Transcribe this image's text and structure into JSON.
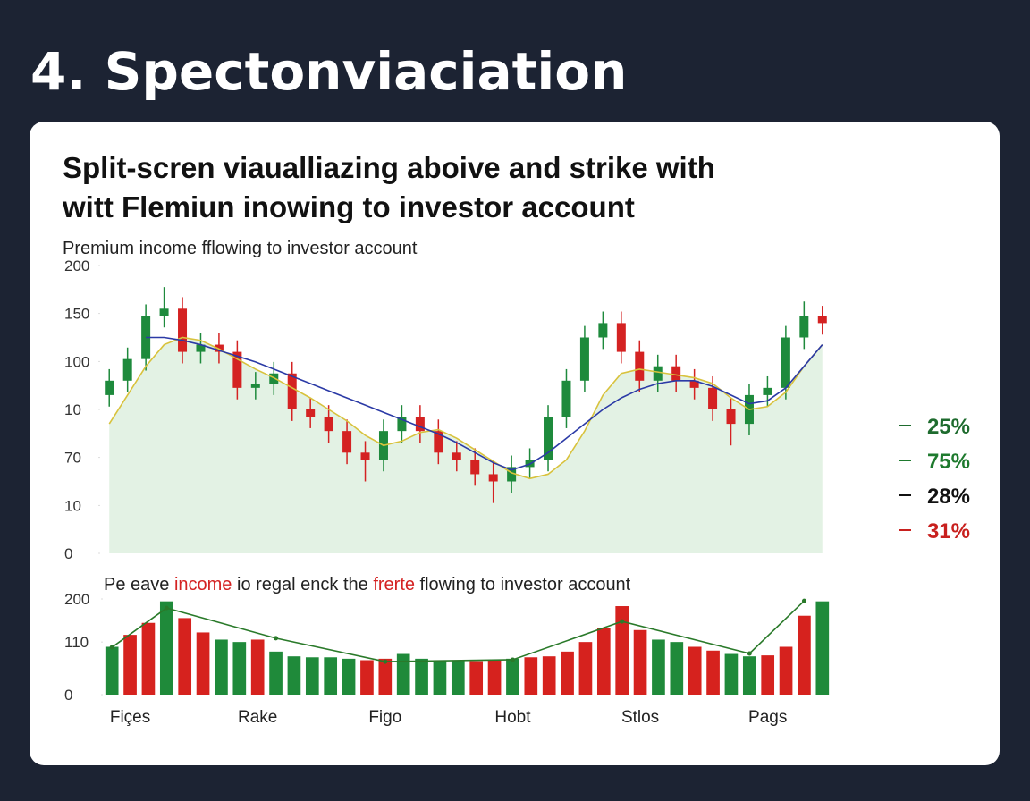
{
  "title": "4. Spectonviaciation",
  "heading": [
    "Split-scren viaualliazing aboive and strike with",
    "witt Flemiun inowing to investor account"
  ],
  "chart_data": [
    {
      "type": "candlestick",
      "title": "Premium income fflowing to investor account",
      "open": [
        110,
        120,
        135,
        165,
        170,
        140,
        145,
        140,
        115,
        118,
        125,
        100,
        95,
        85,
        70,
        65,
        85,
        95,
        85,
        70,
        65,
        55,
        50,
        60,
        65,
        95,
        120,
        150,
        160,
        140,
        120,
        130,
        120,
        115,
        100,
        90,
        110,
        115,
        150,
        165
      ],
      "high": [
        128,
        143,
        173,
        185,
        178,
        153,
        153,
        148,
        126,
        133,
        133,
        108,
        103,
        93,
        78,
        93,
        103,
        103,
        93,
        78,
        73,
        63,
        68,
        73,
        103,
        128,
        158,
        168,
        168,
        148,
        138,
        138,
        128,
        123,
        108,
        118,
        123,
        158,
        175,
        172
      ],
      "low": [
        102,
        112,
        127,
        157,
        132,
        132,
        132,
        107,
        107,
        110,
        92,
        87,
        77,
        62,
        50,
        57,
        77,
        77,
        62,
        57,
        47,
        35,
        42,
        52,
        57,
        87,
        112,
        142,
        132,
        112,
        112,
        112,
        107,
        92,
        75,
        82,
        102,
        107,
        142,
        152
      ],
      "close": [
        120,
        135,
        165,
        170,
        140,
        145,
        140,
        115,
        118,
        125,
        100,
        95,
        85,
        70,
        65,
        85,
        95,
        85,
        70,
        65,
        55,
        50,
        60,
        65,
        95,
        120,
        150,
        160,
        140,
        120,
        130,
        120,
        115,
        100,
        90,
        110,
        115,
        150,
        165,
        160
      ],
      "up_color": "#1e8a3c",
      "down_color": "#d42222",
      "lines": [
        {
          "color": "#d8c23c",
          "values": [
            90,
            110,
            130,
            145,
            150,
            148,
            142,
            135,
            128,
            122,
            115,
            108,
            100,
            92,
            82,
            75,
            78,
            84,
            86,
            80,
            72,
            64,
            56,
            52,
            55,
            65,
            85,
            110,
            125,
            128,
            126,
            124,
            122,
            118,
            108,
            100,
            102,
            112,
            130,
            145
          ]
        },
        {
          "color": "#2b3aa6",
          "values": [
            null,
            null,
            150,
            150,
            148,
            145,
            141,
            137,
            133,
            128,
            123,
            118,
            113,
            108,
            103,
            98,
            93,
            88,
            83,
            77,
            70,
            63,
            58,
            62,
            70,
            80,
            90,
            100,
            108,
            114,
            118,
            120,
            120,
            116,
            110,
            104,
            106,
            115,
            130,
            145
          ]
        }
      ],
      "area_color": "#e3f2e4",
      "ylim": [
        0,
        200
      ],
      "yticks": [
        0,
        {
          "value": 33.3,
          "label": "10"
        },
        {
          "value": 66.7,
          "label": "70"
        },
        {
          "value": 100,
          "label": "10"
        },
        {
          "value": 133.3,
          "label": "100"
        },
        {
          "value": 166.7,
          "label": "150"
        },
        200
      ],
      "legend": [
        {
          "label": "25%",
          "color": "#1e6b2e"
        },
        {
          "label": "75%",
          "color": "#1e7a2e"
        },
        {
          "label": "28%",
          "color": "#111111"
        },
        {
          "label": "31%",
          "color": "#c8201e"
        }
      ]
    },
    {
      "type": "bar",
      "title_parts": [
        "Pe eave ",
        "income",
        " io regal enck the ",
        "frerte",
        " flowing to investor account"
      ],
      "categories": [
        null,
        "Fiçes",
        null,
        null,
        null,
        null,
        null,
        null,
        "Rake",
        null,
        null,
        null,
        null,
        null,
        null,
        "Figo",
        null,
        null,
        null,
        null,
        null,
        null,
        "Hobt",
        null,
        null,
        null,
        null,
        null,
        null,
        "Stlos",
        null,
        null,
        null,
        null,
        null,
        null,
        "Pags",
        null,
        null,
        null
      ],
      "values": [
        100,
        125,
        150,
        195,
        160,
        130,
        115,
        110,
        115,
        90,
        80,
        78,
        78,
        75,
        72,
        75,
        85,
        75,
        72,
        72,
        70,
        72,
        75,
        78,
        80,
        90,
        110,
        140,
        185,
        135,
        115,
        110,
        100,
        92,
        85,
        80,
        82,
        100,
        165,
        195
      ],
      "colors": [
        "#1f8a3a",
        "#d6221e",
        "#d6221e",
        "#1f8a3a",
        "#d6221e",
        "#d6221e",
        "#1f8a3a",
        "#1f8a3a",
        "#d6221e",
        "#1f8a3a",
        "#1f8a3a",
        "#1f8a3a",
        "#1f8a3a",
        "#1f8a3a",
        "#d6221e",
        "#d6221e",
        "#1f8a3a",
        "#1f8a3a",
        "#1f8a3a",
        "#1f8a3a",
        "#d6221e",
        "#d6221e",
        "#1f8a3a",
        "#d6221e",
        "#d6221e",
        "#d6221e",
        "#d6221e",
        "#d6221e",
        "#d6221e",
        "#d6221e",
        "#1f8a3a",
        "#1f8a3a",
        "#d6221e",
        "#d6221e",
        "#1f8a3a",
        "#1f8a3a",
        "#d6221e",
        "#d6221e",
        "#d6221e",
        "#1f8a3a"
      ],
      "line": {
        "color": "#2a7a2a",
        "x": [
          0,
          3,
          9,
          15,
          22,
          28,
          35,
          38
        ],
        "values": [
          99,
          181,
          118,
          69,
          73,
          153,
          86,
          196
        ]
      },
      "ylim": [
        0,
        200
      ],
      "yticks": [
        0,
        110,
        200
      ]
    }
  ]
}
